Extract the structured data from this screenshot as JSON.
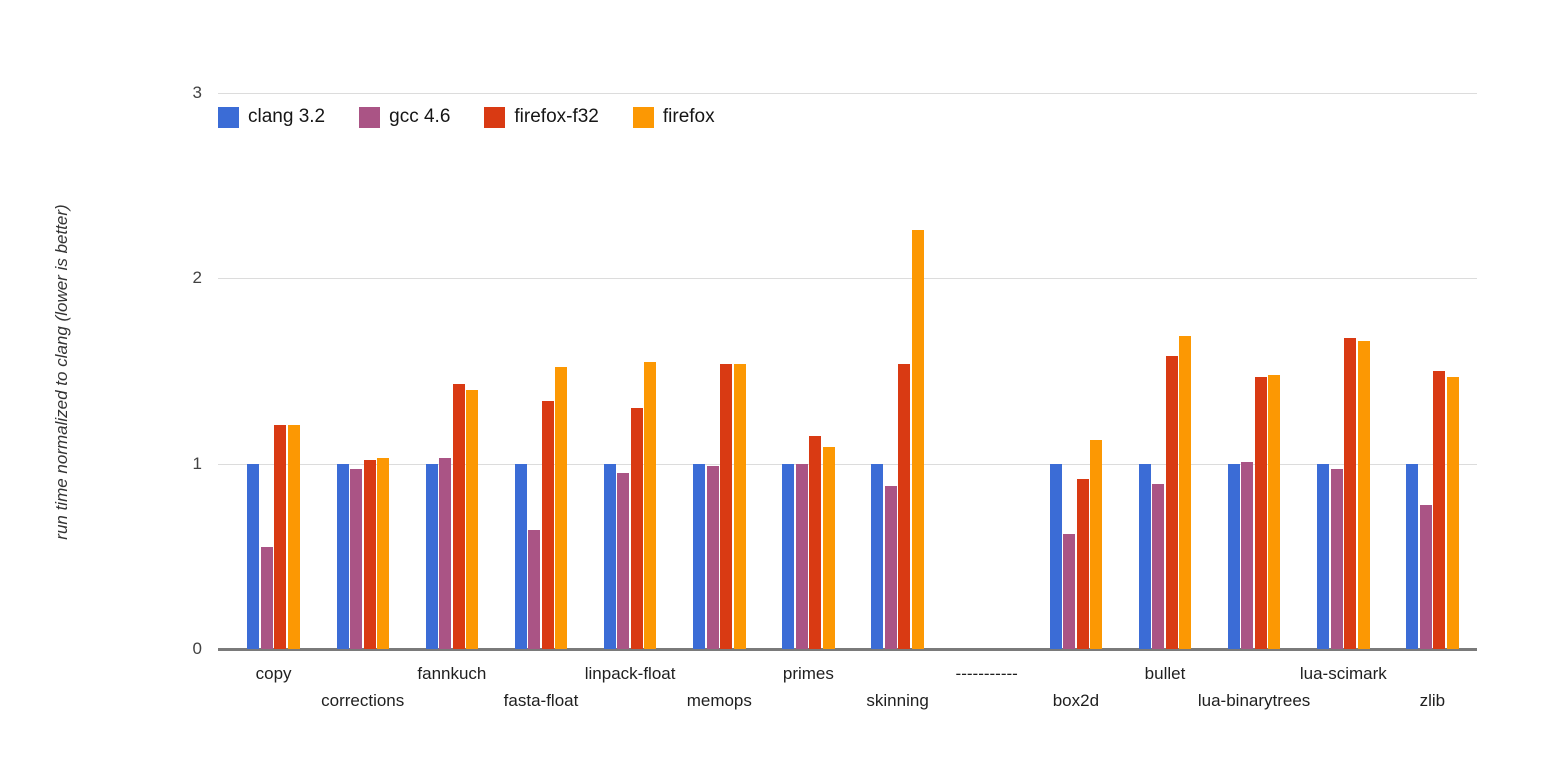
{
  "chart_data": {
    "type": "bar",
    "title": "",
    "xlabel": "",
    "ylabel": "run time normalized to clang (lower is better)",
    "ylim": [
      0,
      3
    ],
    "yticks": [
      0,
      1,
      2,
      3
    ],
    "grid": true,
    "legend_position": "top-left-inside",
    "categories": [
      "copy",
      "corrections",
      "fannkuch",
      "fasta-float",
      "linpack-float",
      "memops",
      "primes",
      "skinning",
      "-----------",
      "box2d",
      "bullet",
      "lua-binarytrees",
      "lua-scimark",
      "zlib"
    ],
    "series": [
      {
        "name": "clang 3.2",
        "color": "#3b6cd6",
        "values": [
          1.0,
          1.0,
          1.0,
          1.0,
          1.0,
          1.0,
          1.0,
          1.0,
          null,
          1.0,
          1.0,
          1.0,
          1.0,
          1.0
        ]
      },
      {
        "name": "gcc 4.6",
        "color": "#aa5485",
        "values": [
          0.55,
          0.97,
          1.03,
          0.64,
          0.95,
          0.99,
          1.0,
          0.88,
          null,
          0.62,
          0.89,
          1.01,
          0.97,
          0.78
        ]
      },
      {
        "name": "firefox-f32",
        "color": "#d93a13",
        "values": [
          1.21,
          1.02,
          1.43,
          1.34,
          1.3,
          1.54,
          1.15,
          1.54,
          null,
          0.92,
          1.58,
          1.47,
          1.68,
          1.5
        ]
      },
      {
        "name": "firefox",
        "color": "#fc9803",
        "values": [
          1.21,
          1.03,
          1.4,
          1.52,
          1.55,
          1.54,
          1.09,
          2.26,
          null,
          1.13,
          1.69,
          1.48,
          1.66,
          1.47
        ]
      }
    ],
    "colors": {
      "gridline": "#dcdcdc",
      "baseline": "#7a7a7a",
      "axis_text": "#424242",
      "category_text": "#1f1f1f",
      "legend_text": "#161616",
      "y_title_text": "#333333",
      "background": "#ffffff"
    }
  }
}
